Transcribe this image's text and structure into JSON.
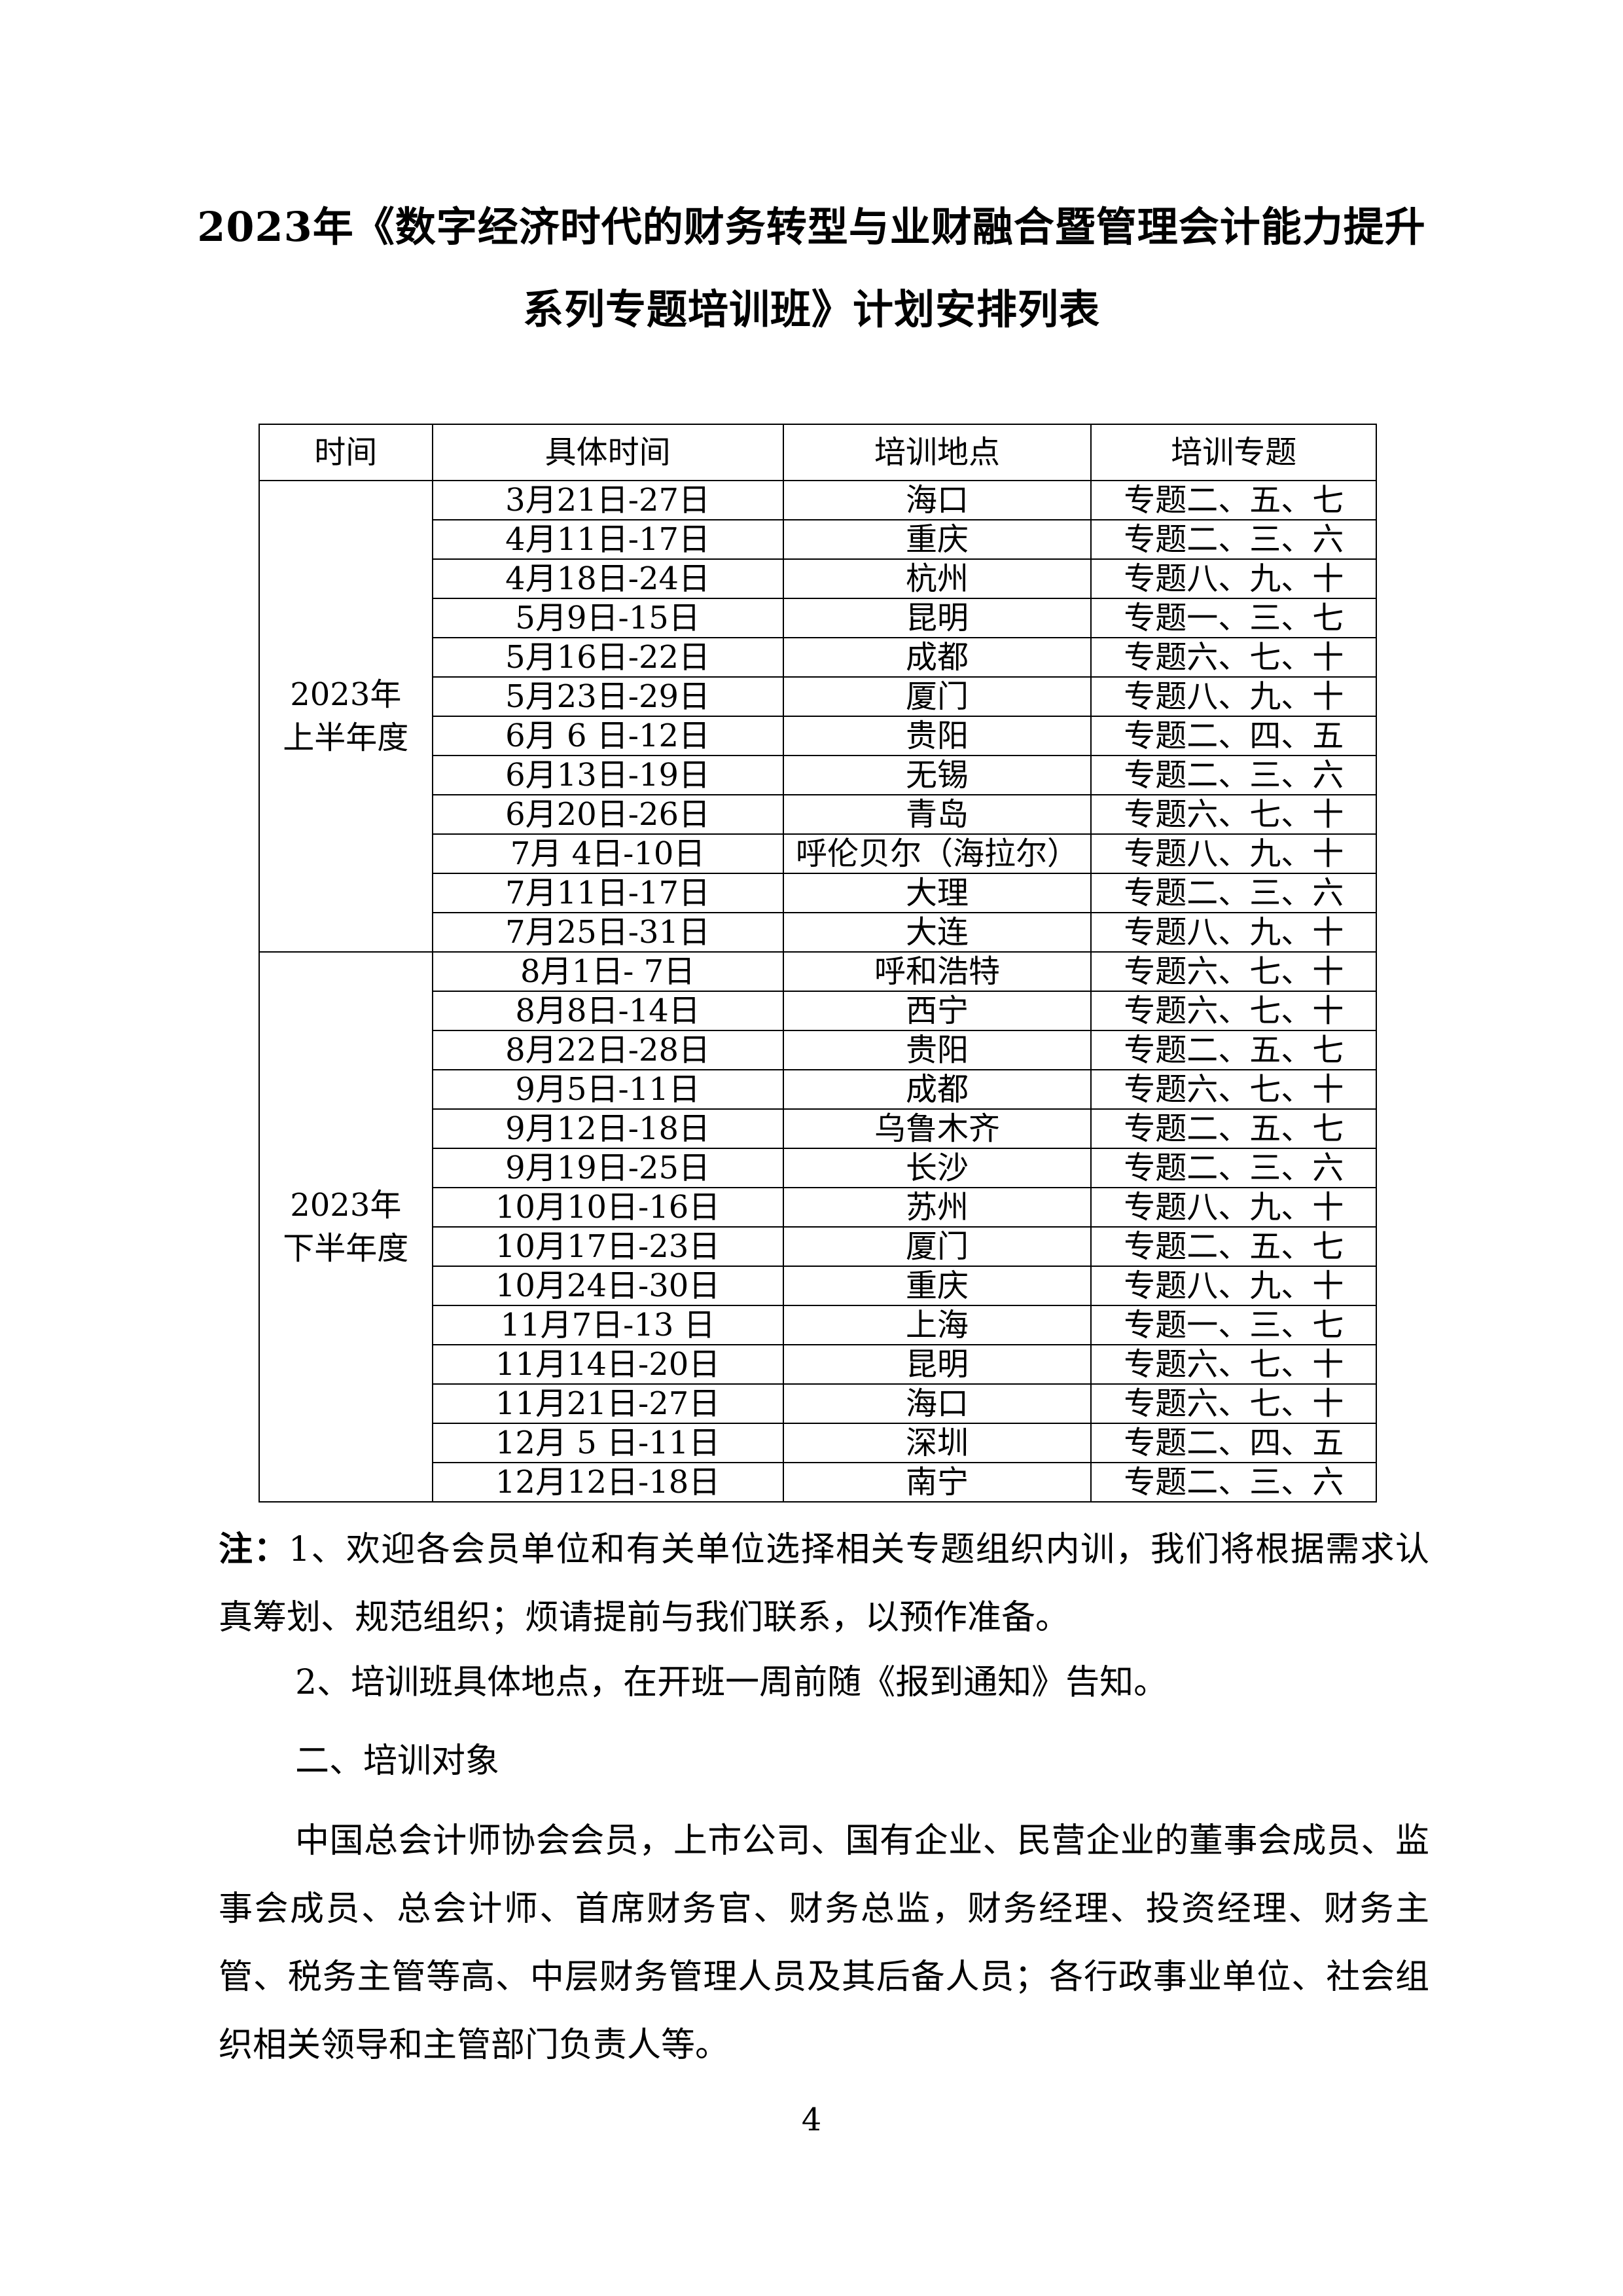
{
  "title": {
    "line1": "2023年《数字经济时代的财务转型与业财融合暨管理会计能力提升",
    "line2": "系列专题培训班》计划安排列表"
  },
  "table": {
    "headers": [
      "时间",
      "具体时间",
      "培训地点",
      "培训专题"
    ],
    "groups": [
      {
        "period": "2023年上半年度",
        "rows": [
          [
            "3月21日-27日",
            "海口",
            "专题二、五、七"
          ],
          [
            "4月11日-17日",
            "重庆",
            "专题二、三、六"
          ],
          [
            "4月18日-24日",
            "杭州",
            "专题八、九、十"
          ],
          [
            "5月9日-15日",
            "昆明",
            "专题一、三、七"
          ],
          [
            "5月16日-22日",
            "成都",
            "专题六、七、十"
          ],
          [
            "5月23日-29日",
            "厦门",
            "专题八、九、十"
          ],
          [
            "6月 6 日-12日",
            "贵阳",
            "专题二、四、五"
          ],
          [
            "6月13日-19日",
            "无锡",
            "专题二、三、六"
          ],
          [
            "6月20日-26日",
            "青岛",
            "专题六、七、十"
          ],
          [
            "7月 4日-10日",
            "呼伦贝尔（海拉尔）",
            "专题八、九、十"
          ],
          [
            "7月11日-17日",
            "大理",
            "专题二、三、六"
          ],
          [
            "7月25日-31日",
            "大连",
            "专题八、九、十"
          ]
        ]
      },
      {
        "period": "2023年下半年度",
        "rows": [
          [
            "8月1日- 7日",
            "呼和浩特",
            "专题六、七、十"
          ],
          [
            "8月8日-14日",
            "西宁",
            "专题六、七、十"
          ],
          [
            "8月22日-28日",
            "贵阳",
            "专题二、五、七"
          ],
          [
            "9月5日-11日",
            "成都",
            "专题六、七、十"
          ],
          [
            "9月12日-18日",
            "乌鲁木齐",
            "专题二、五、七"
          ],
          [
            "9月19日-25日",
            "长沙",
            "专题二、三、六"
          ],
          [
            "10月10日-16日",
            "苏州",
            "专题八、九、十"
          ],
          [
            "10月17日-23日",
            "厦门",
            "专题二、五、七"
          ],
          [
            "10月24日-30日",
            "重庆",
            "专题八、九、十"
          ],
          [
            "11月7日-13 日",
            "上海",
            "专题一、三、七"
          ],
          [
            "11月14日-20日",
            "昆明",
            "专题六、七、十"
          ],
          [
            "11月21日-27日",
            "海口",
            "专题六、七、十"
          ],
          [
            "12月 5 日-11日",
            "深圳",
            "专题二、四、五"
          ],
          [
            "12月12日-18日",
            "南宁",
            "专题二、三、六"
          ]
        ]
      }
    ]
  },
  "notes": {
    "label": "注：",
    "item1": "1、欢迎各会员单位和有关单位选择相关专题组织内训，我们将根据需求认真筹划、规范组织；烦请提前与我们联系，以预作准备。",
    "item2": "2、培训班具体地点，在开班一周前随《报到通知》告知。"
  },
  "section2": {
    "heading": "二、培训对象",
    "body": "中国总会计师协会会员，上市公司、国有企业、民营企业的董事会成员、监事会成员、总会计师、首席财务官、财务总监，财务经理、投资经理、财务主管、税务主管等高、中层财务管理人员及其后备人员；各行政事业单位、社会组织相关领导和主管部门负责人等。"
  },
  "page_number": "4"
}
